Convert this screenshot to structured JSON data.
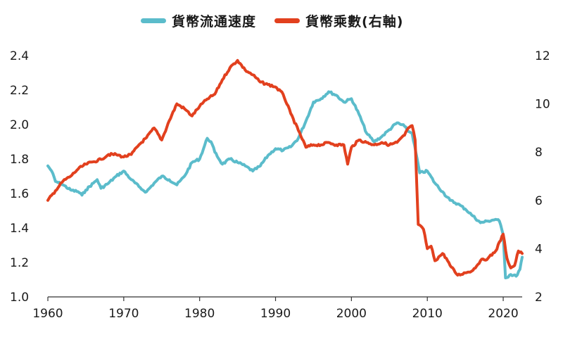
{
  "chart_data": {
    "type": "line",
    "title": "",
    "xlabel": "",
    "ylabel": "",
    "y2label": "",
    "xlim": [
      1960,
      2022.5
    ],
    "ylim": [
      1.0,
      2.4
    ],
    "y2lim": [
      2,
      12
    ],
    "x_ticks": [
      "1960",
      "1970",
      "1980",
      "1990",
      "2000",
      "2010",
      "2020"
    ],
    "y_ticks": [
      "1.0",
      "1.2",
      "1.4",
      "1.6",
      "1.8",
      "2.0",
      "2.2",
      "2.4"
    ],
    "y2_ticks": [
      "2",
      "4",
      "6",
      "8",
      "10",
      "12"
    ],
    "grid": false,
    "legend_position": "top-center",
    "series": [
      {
        "name": "貨幣流通速度",
        "axis": "left",
        "color": "#5bbccb",
        "points": [
          [
            1960,
            1.76
          ],
          [
            1960.5,
            1.73
          ],
          [
            1961,
            1.67
          ],
          [
            1962,
            1.65
          ],
          [
            1963,
            1.62
          ],
          [
            1964,
            1.61
          ],
          [
            1964.5,
            1.59
          ],
          [
            1965,
            1.62
          ],
          [
            1966,
            1.66
          ],
          [
            1966.5,
            1.68
          ],
          [
            1967,
            1.63
          ],
          [
            1968,
            1.66
          ],
          [
            1969,
            1.7
          ],
          [
            1970,
            1.73
          ],
          [
            1971,
            1.68
          ],
          [
            1972,
            1.64
          ],
          [
            1972.5,
            1.62
          ],
          [
            1973,
            1.61
          ],
          [
            1974,
            1.66
          ],
          [
            1975,
            1.7
          ],
          [
            1976,
            1.68
          ],
          [
            1977,
            1.65
          ],
          [
            1978,
            1.7
          ],
          [
            1979,
            1.78
          ],
          [
            1980,
            1.8
          ],
          [
            1981,
            1.92
          ],
          [
            1981.5,
            1.9
          ],
          [
            1982,
            1.84
          ],
          [
            1983,
            1.77
          ],
          [
            1984,
            1.8
          ],
          [
            1985,
            1.78
          ],
          [
            1986,
            1.76
          ],
          [
            1987,
            1.73
          ],
          [
            1988,
            1.76
          ],
          [
            1989,
            1.82
          ],
          [
            1990,
            1.86
          ],
          [
            1991,
            1.85
          ],
          [
            1992,
            1.87
          ],
          [
            1993,
            1.92
          ],
          [
            1994,
            2.02
          ],
          [
            1995,
            2.13
          ],
          [
            1996,
            2.15
          ],
          [
            1997,
            2.19
          ],
          [
            1998,
            2.17
          ],
          [
            1999,
            2.13
          ],
          [
            2000,
            2.15
          ],
          [
            2001,
            2.06
          ],
          [
            2002,
            1.95
          ],
          [
            2003,
            1.9
          ],
          [
            2004,
            1.93
          ],
          [
            2005,
            1.97
          ],
          [
            2006,
            2.01
          ],
          [
            2007,
            1.99
          ],
          [
            2007.5,
            1.96
          ],
          [
            2008,
            1.95
          ],
          [
            2009,
            1.72
          ],
          [
            2010,
            1.73
          ],
          [
            2011,
            1.66
          ],
          [
            2012,
            1.61
          ],
          [
            2013,
            1.56
          ],
          [
            2014,
            1.54
          ],
          [
            2015,
            1.51
          ],
          [
            2016,
            1.47
          ],
          [
            2017,
            1.43
          ],
          [
            2018,
            1.44
          ],
          [
            2019,
            1.45
          ],
          [
            2019.5,
            1.44
          ],
          [
            2020,
            1.36
          ],
          [
            2020.3,
            1.11
          ],
          [
            2021,
            1.13
          ],
          [
            2021.7,
            1.12
          ],
          [
            2022.2,
            1.16
          ],
          [
            2022.5,
            1.23
          ]
        ]
      },
      {
        "name": "貨幣乘數(右軸)",
        "axis": "right",
        "color": "#e2401e",
        "points": [
          [
            1960,
            6.0
          ],
          [
            1961,
            6.4
          ],
          [
            1962,
            6.8
          ],
          [
            1963,
            7.0
          ],
          [
            1964,
            7.3
          ],
          [
            1965,
            7.5
          ],
          [
            1966,
            7.6
          ],
          [
            1967,
            7.7
          ],
          [
            1968,
            7.9
          ],
          [
            1969,
            7.9
          ],
          [
            1970,
            7.8
          ],
          [
            1971,
            7.9
          ],
          [
            1972,
            8.3
          ],
          [
            1973,
            8.6
          ],
          [
            1974,
            9.0
          ],
          [
            1975,
            8.5
          ],
          [
            1976,
            9.3
          ],
          [
            1977,
            10.0
          ],
          [
            1978,
            9.8
          ],
          [
            1979,
            9.5
          ],
          [
            1980,
            9.9
          ],
          [
            1981,
            10.2
          ],
          [
            1982,
            10.4
          ],
          [
            1983,
            11.0
          ],
          [
            1984,
            11.5
          ],
          [
            1985,
            11.8
          ],
          [
            1986,
            11.4
          ],
          [
            1987,
            11.2
          ],
          [
            1988,
            10.9
          ],
          [
            1989,
            10.8
          ],
          [
            1990,
            10.7
          ],
          [
            1991,
            10.4
          ],
          [
            1992,
            9.6
          ],
          [
            1993,
            8.9
          ],
          [
            1994,
            8.2
          ],
          [
            1995,
            8.3
          ],
          [
            1996,
            8.3
          ],
          [
            1997,
            8.4
          ],
          [
            1998,
            8.3
          ],
          [
            1999,
            8.3
          ],
          [
            1999.5,
            7.5
          ],
          [
            2000,
            8.2
          ],
          [
            2001,
            8.5
          ],
          [
            2002,
            8.4
          ],
          [
            2003,
            8.3
          ],
          [
            2004,
            8.4
          ],
          [
            2005,
            8.3
          ],
          [
            2006,
            8.4
          ],
          [
            2007,
            8.7
          ],
          [
            2007.5,
            9.0
          ],
          [
            2008,
            9.1
          ],
          [
            2008.4,
            8.5
          ],
          [
            2008.8,
            5.0
          ],
          [
            2009.5,
            4.8
          ],
          [
            2010,
            4.0
          ],
          [
            2010.5,
            4.1
          ],
          [
            2011,
            3.5
          ],
          [
            2012,
            3.8
          ],
          [
            2012.5,
            3.6
          ],
          [
            2013,
            3.3
          ],
          [
            2014,
            2.9
          ],
          [
            2015,
            3.0
          ],
          [
            2016,
            3.1
          ],
          [
            2017,
            3.5
          ],
          [
            2018,
            3.6
          ],
          [
            2019,
            3.9
          ],
          [
            2020,
            4.6
          ],
          [
            2020.5,
            3.6
          ],
          [
            2021,
            3.2
          ],
          [
            2021.5,
            3.3
          ],
          [
            2022,
            3.9
          ],
          [
            2022.5,
            3.8
          ]
        ]
      }
    ]
  }
}
